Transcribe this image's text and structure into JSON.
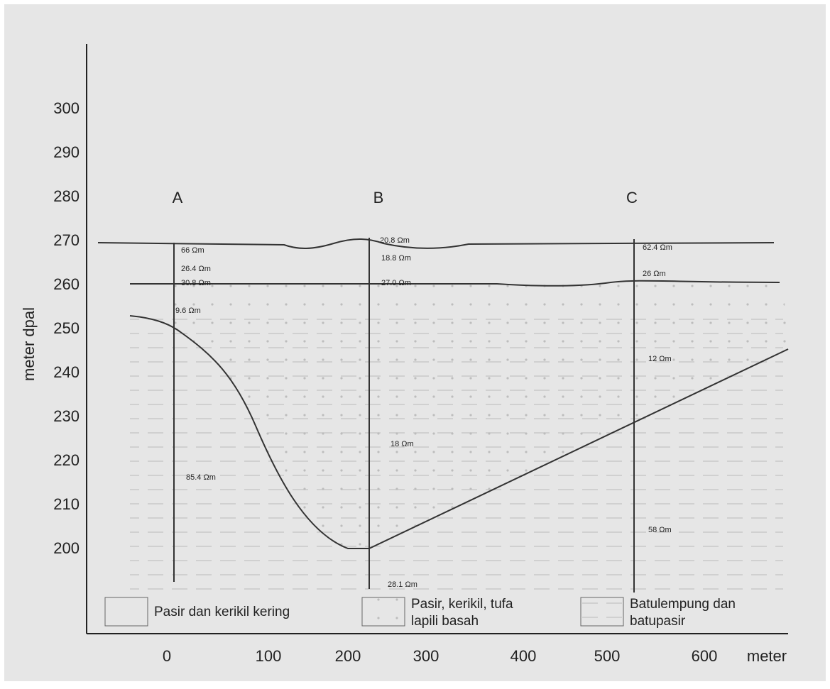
{
  "y_axis": {
    "label": "meter dpal",
    "ticks": [
      "300",
      "290",
      "280",
      "270",
      "260",
      "250",
      "240",
      "230",
      "220",
      "210",
      "200"
    ]
  },
  "x_axis": {
    "ticks": [
      "0",
      "100",
      "200",
      "300",
      "400",
      "500",
      "600"
    ],
    "unit": "meter"
  },
  "boreholes": [
    {
      "label": "A",
      "readings": [
        "66 Ωm",
        "26.4 Ωm",
        "30.8 Ωm",
        "9.6 Ωm",
        "85.4 Ωm"
      ]
    },
    {
      "label": "B",
      "readings": [
        "20.8 Ωm",
        "18.8 Ωm",
        "27.0 Ωm",
        "18 Ωm",
        "28.1 Ωm"
      ]
    },
    {
      "label": "C",
      "readings": [
        "62.4 Ωm",
        "26 Ωm",
        "12 Ωm",
        "58 Ωm"
      ]
    }
  ],
  "legend": [
    {
      "lines": [
        "Pasir dan kerikil kering"
      ]
    },
    {
      "lines": [
        "Pasir, kerikil, tufa",
        "lapili basah"
      ]
    },
    {
      "lines": [
        "Batulempung dan",
        "batupasir"
      ]
    }
  ]
}
